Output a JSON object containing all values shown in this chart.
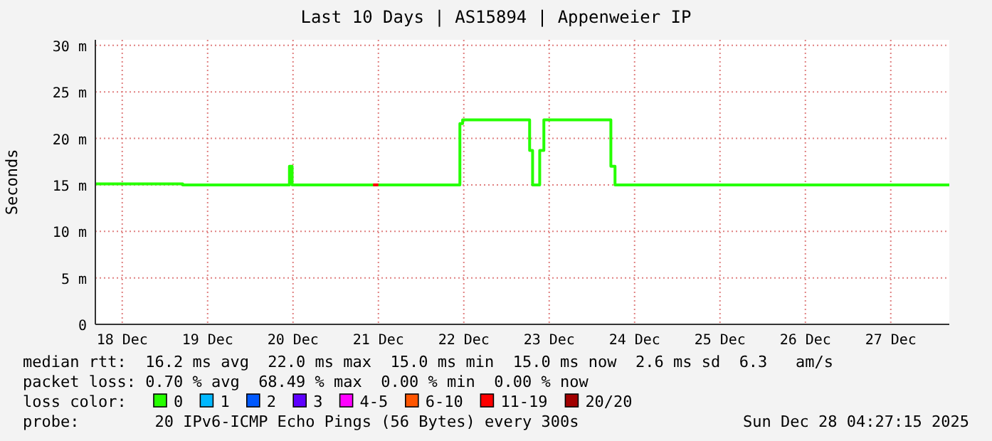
{
  "chart_data": {
    "type": "step",
    "title": "Last 10 Days | AS15894 | Appenweier IP",
    "ylabel": "Seconds",
    "legend_title": "loss color:",
    "legend": "bottom",
    "grid": true,
    "xlim": [
      "2025-12-18T04:27",
      "2025-12-28T04:27"
    ],
    "xticks": [
      {
        "value": "2025-12-18T12:00",
        "label": "18 Dec"
      },
      {
        "value": "2025-12-19T12:00",
        "label": "19 Dec"
      },
      {
        "value": "2025-12-20T12:00",
        "label": "20 Dec"
      },
      {
        "value": "2025-12-21T12:00",
        "label": "21 Dec"
      },
      {
        "value": "2025-12-22T12:00",
        "label": "22 Dec"
      },
      {
        "value": "2025-12-23T12:00",
        "label": "23 Dec"
      },
      {
        "value": "2025-12-24T12:00",
        "label": "24 Dec"
      },
      {
        "value": "2025-12-25T12:00",
        "label": "25 Dec"
      },
      {
        "value": "2025-12-26T12:00",
        "label": "26 Dec"
      },
      {
        "value": "2025-12-27T12:00",
        "label": "27 Dec"
      }
    ],
    "ylim": [
      0,
      30.6
    ],
    "yticks": [
      {
        "value": 0,
        "label": "0"
      },
      {
        "value": 5,
        "label": "5 m"
      },
      {
        "value": 10,
        "label": "10 m"
      },
      {
        "value": 15,
        "label": "15 m"
      },
      {
        "value": 20,
        "label": "20 m"
      },
      {
        "value": 25,
        "label": "25 m"
      },
      {
        "value": 30,
        "label": "30 m"
      }
    ],
    "series": [
      {
        "name": "0",
        "color": "#26ff00",
        "x": [
          "2025-12-18T04:30",
          "2025-12-19T05:00",
          "2025-12-20T11:00",
          "2025-12-20T11:45",
          "2025-12-22T10:54",
          "2025-12-22T11:40",
          "2025-12-23T06:30",
          "2025-12-23T07:20",
          "2025-12-23T09:20",
          "2025-12-23T10:30",
          "2025-12-24T05:20",
          "2025-12-24T06:30",
          "2025-12-28T04:27"
        ],
        "values": [
          15.1,
          15,
          17,
          15,
          21.6,
          22,
          18.7,
          15,
          18.7,
          22,
          17,
          15,
          15
        ]
      },
      {
        "name": "1",
        "color": "#00b8ff"
      },
      {
        "name": "2",
        "color": "#0059ff"
      },
      {
        "name": "3",
        "color": "#5e00ff"
      },
      {
        "name": "4-5",
        "color": "#ff00ff"
      },
      {
        "name": "6-10",
        "color": "#ff5500"
      },
      {
        "name": "11-19",
        "color": "#ff0000",
        "x": [
          "2025-12-21T10:30",
          "2025-12-21T12:00"
        ],
        "values": [
          15,
          15
        ]
      },
      {
        "name": "20/20",
        "color": "#a10000"
      }
    ],
    "annotations": [
      "median rtt:  16.2 ms avg  22.0 ms max  15.0 ms min  15.0 ms now  2.6 ms sd  6.3   am/s",
      "packet loss: 0.70 % avg  68.49 % max  0.00 % min  0.00 % now",
      "probe:        20 IPv6-ICMP Echo Pings (56 Bytes) every 300s",
      "Sun Dec 28 04:27:15 2025"
    ]
  }
}
